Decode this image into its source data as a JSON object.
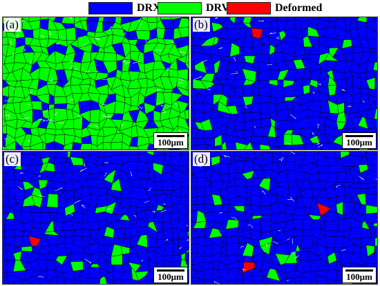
{
  "legend": [
    {
      "label": "DRX",
      "color": "#0000ff"
    },
    {
      "label": "DRV",
      "color": "#00ff00"
    },
    {
      "label": "Deformed",
      "color": "#ff0000"
    }
  ],
  "panels": [
    {
      "letter": "(a)",
      "scale_label": "100μm",
      "drv_fraction": 0.75
    },
    {
      "letter": "(b)",
      "scale_label": "100μm",
      "drv_fraction": 0.18
    },
    {
      "letter": "(c)",
      "scale_label": "100μm",
      "drv_fraction": 0.1
    },
    {
      "letter": "(d)",
      "scale_label": "100μm",
      "drv_fraction": 0.08
    }
  ],
  "colors": {
    "drx": "#0000ff",
    "drv": "#00ff00",
    "deformed": "#ff0000",
    "grain_boundary": "#000000",
    "low_angle_boundary": "#ffffff"
  }
}
